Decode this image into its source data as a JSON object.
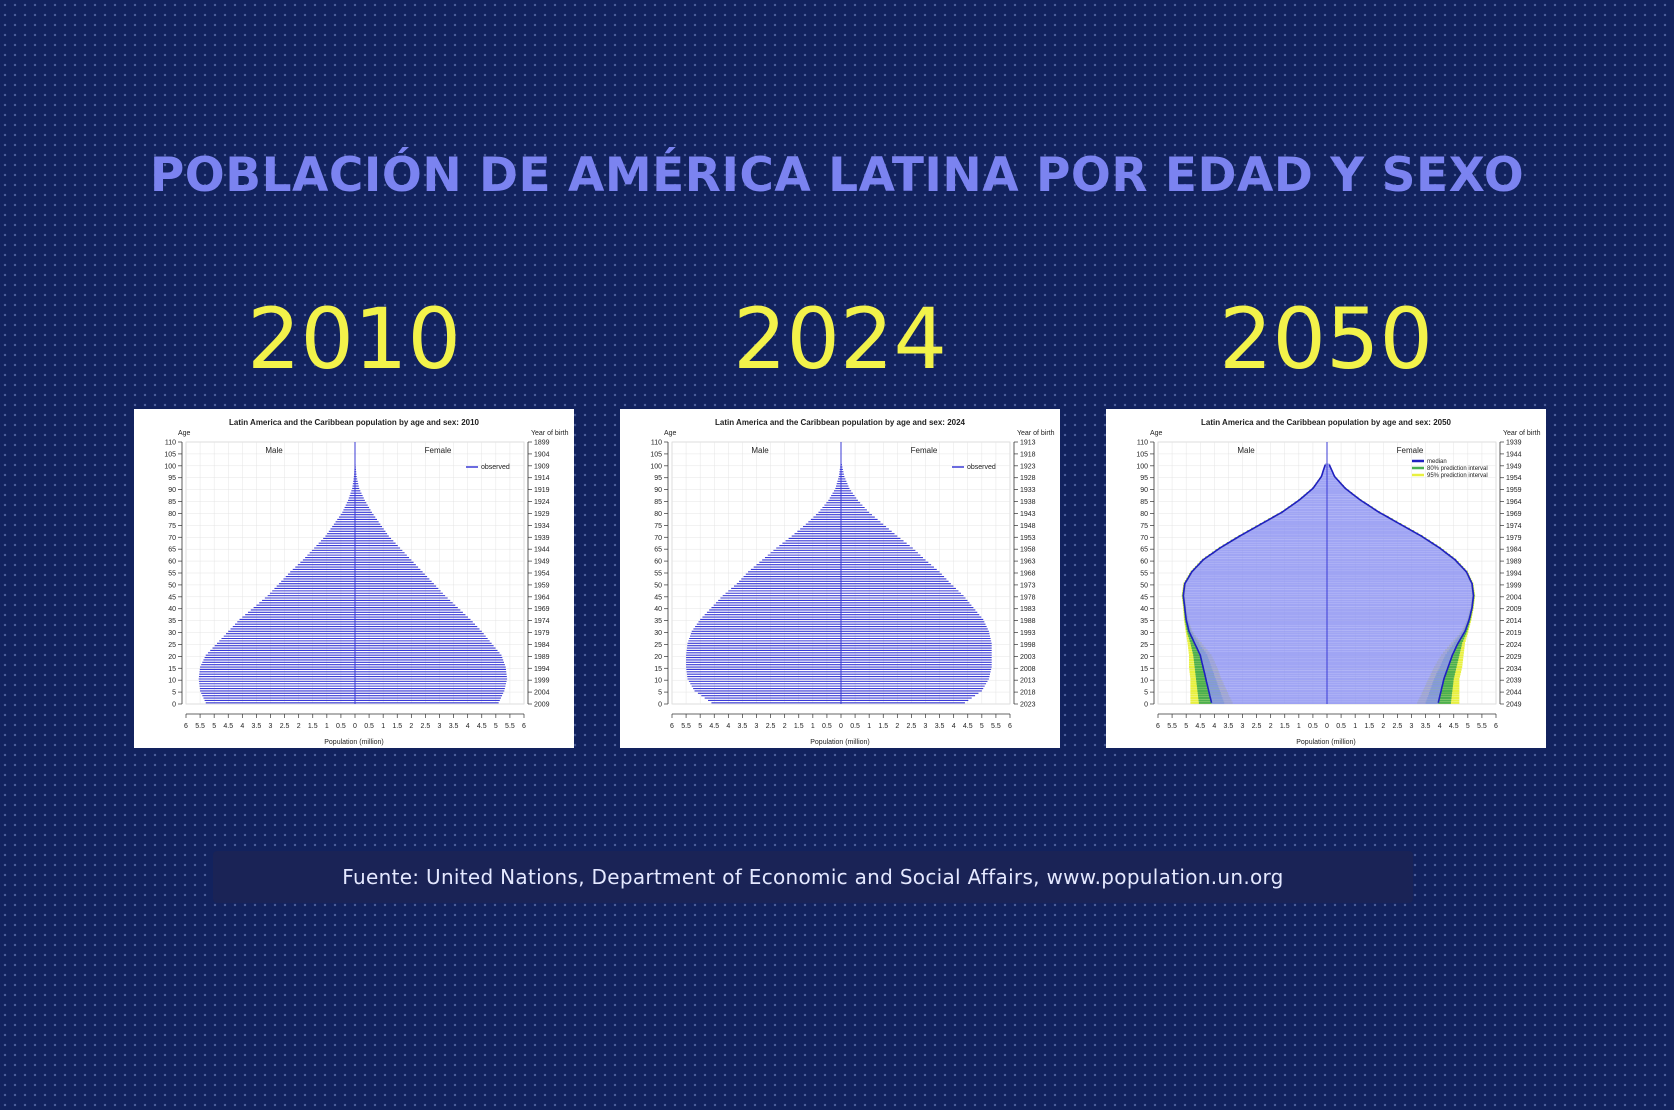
{
  "title": "POBLACIÓN DE AMÉRICA LATINA POR EDAD Y SEXO",
  "years": [
    "2010",
    "2024",
    "2050"
  ],
  "source": "Fuente: United Nations, Department of Economic and Social Affairs, www.population.un.org",
  "colors": {
    "background": "#12225e",
    "title": "#7b83f0",
    "year": "#f2f24a",
    "bars": "#3b3bd6",
    "median": "#2020c0",
    "pi80": "#4caf50",
    "pi95": "#e8f040"
  },
  "chart_data": [
    {
      "type": "bar",
      "title": "Latin America and the Caribbean population by age and sex: 2010",
      "xlabel": "Population (million)",
      "ylabel": "Age",
      "y2label": "Year of birth",
      "left_label": "Male",
      "right_label": "Female",
      "legend": [
        "observed"
      ],
      "legend_position": "top-right",
      "grid": true,
      "xlim": [
        -6,
        6
      ],
      "ylim": [
        0,
        110
      ],
      "x_ticks": [
        "6",
        "5.5",
        "5",
        "4.5",
        "4",
        "3.5",
        "3",
        "2.5",
        "2",
        "1.5",
        "1",
        "0.5",
        "0",
        "0.5",
        "1",
        "1.5",
        "2",
        "2.5",
        "3",
        "3.5",
        "4",
        "4.5",
        "5",
        "5.5",
        "6"
      ],
      "age_ticks": [
        "0",
        "5",
        "10",
        "15",
        "20",
        "25",
        "30",
        "35",
        "40",
        "45",
        "50",
        "55",
        "60",
        "65",
        "70",
        "75",
        "80",
        "85",
        "90",
        "95",
        "100",
        "105",
        "110"
      ],
      "birth_ticks": [
        "2009",
        "2004",
        "1999",
        "1994",
        "1989",
        "1984",
        "1979",
        "1974",
        "1969",
        "1964",
        "1959",
        "1954",
        "1949",
        "1944",
        "1939",
        "1934",
        "1929",
        "1924",
        "1919",
        "1914",
        "1909",
        "1904",
        "1899"
      ],
      "age_points": [
        0,
        5,
        10,
        15,
        20,
        25,
        30,
        35,
        40,
        45,
        50,
        55,
        60,
        65,
        70,
        75,
        80,
        85,
        90,
        95,
        100,
        105,
        110
      ],
      "series": [
        {
          "name": "Male",
          "values": [
            5.3,
            5.5,
            5.55,
            5.5,
            5.3,
            4.9,
            4.5,
            4.1,
            3.6,
            3.1,
            2.7,
            2.3,
            1.85,
            1.45,
            1.05,
            0.75,
            0.45,
            0.25,
            0.1,
            0.04,
            0.01,
            0.005,
            0.002
          ]
        },
        {
          "name": "Female",
          "values": [
            5.1,
            5.3,
            5.4,
            5.35,
            5.2,
            4.85,
            4.5,
            4.1,
            3.65,
            3.2,
            2.8,
            2.4,
            2.0,
            1.6,
            1.2,
            0.9,
            0.6,
            0.35,
            0.15,
            0.06,
            0.02,
            0.006,
            0.002
          ]
        }
      ]
    },
    {
      "type": "bar",
      "title": "Latin America and the Caribbean population by age and sex: 2024",
      "xlabel": "Population (million)",
      "ylabel": "Age",
      "y2label": "Year of birth",
      "left_label": "Male",
      "right_label": "Female",
      "legend": [
        "observed"
      ],
      "legend_position": "top-right",
      "grid": true,
      "xlim": [
        -6,
        6
      ],
      "ylim": [
        0,
        110
      ],
      "x_ticks": [
        "6",
        "5.5",
        "5",
        "4.5",
        "4",
        "3.5",
        "3",
        "2.5",
        "2",
        "1.5",
        "1",
        "0.5",
        "0",
        "0.5",
        "1",
        "1.5",
        "2",
        "2.5",
        "3",
        "3.5",
        "4",
        "4.5",
        "5",
        "5.5",
        "6"
      ],
      "age_ticks": [
        "0",
        "5",
        "10",
        "15",
        "20",
        "25",
        "30",
        "35",
        "40",
        "45",
        "50",
        "55",
        "60",
        "65",
        "70",
        "75",
        "80",
        "85",
        "90",
        "95",
        "100",
        "105",
        "110"
      ],
      "birth_ticks": [
        "2023",
        "2018",
        "2013",
        "2008",
        "2003",
        "1998",
        "1993",
        "1988",
        "1983",
        "1978",
        "1973",
        "1968",
        "1963",
        "1958",
        "1953",
        "1948",
        "1943",
        "1938",
        "1933",
        "1928",
        "1923",
        "1918",
        "1913"
      ],
      "age_points": [
        0,
        5,
        10,
        15,
        20,
        25,
        30,
        35,
        40,
        45,
        50,
        55,
        60,
        65,
        70,
        75,
        80,
        85,
        90,
        95,
        100,
        105,
        110
      ],
      "series": [
        {
          "name": "Male",
          "values": [
            4.6,
            5.2,
            5.45,
            5.5,
            5.5,
            5.45,
            5.3,
            5.0,
            4.6,
            4.2,
            3.7,
            3.3,
            2.8,
            2.3,
            1.75,
            1.25,
            0.8,
            0.45,
            0.2,
            0.08,
            0.02,
            0.006,
            0.002
          ]
        },
        {
          "name": "Female",
          "values": [
            4.4,
            5.0,
            5.25,
            5.35,
            5.35,
            5.35,
            5.25,
            5.05,
            4.7,
            4.35,
            3.9,
            3.5,
            3.0,
            2.55,
            2.0,
            1.5,
            1.0,
            0.6,
            0.3,
            0.12,
            0.035,
            0.008,
            0.002
          ]
        }
      ]
    },
    {
      "type": "bar",
      "title": "Latin America and the Caribbean population by age and sex: 2050",
      "xlabel": "Population (million)",
      "ylabel": "Age",
      "y2label": "Year of birth",
      "left_label": "Male",
      "right_label": "Female",
      "legend": [
        "median",
        "80% prediction interval",
        "95% prediction interval"
      ],
      "legend_position": "top-right",
      "grid": true,
      "xlim": [
        -6,
        6
      ],
      "ylim": [
        0,
        110
      ],
      "x_ticks": [
        "6",
        "5.5",
        "5",
        "4.5",
        "4",
        "3.5",
        "3",
        "2.5",
        "2",
        "1.5",
        "1",
        "0.5",
        "0",
        "0.5",
        "1",
        "1.5",
        "2",
        "2.5",
        "3",
        "3.5",
        "4",
        "4.5",
        "5",
        "5.5",
        "6"
      ],
      "age_ticks": [
        "0",
        "5",
        "10",
        "15",
        "20",
        "25",
        "30",
        "35",
        "40",
        "45",
        "50",
        "55",
        "60",
        "65",
        "70",
        "75",
        "80",
        "85",
        "90",
        "95",
        "100",
        "105",
        "110"
      ],
      "birth_ticks": [
        "2049",
        "2044",
        "2039",
        "2034",
        "2029",
        "2024",
        "2019",
        "2014",
        "2009",
        "2004",
        "1999",
        "1994",
        "1989",
        "1984",
        "1979",
        "1974",
        "1969",
        "1964",
        "1959",
        "1954",
        "1949",
        "1944",
        "1939"
      ],
      "age_points": [
        0,
        5,
        10,
        15,
        20,
        25,
        30,
        35,
        40,
        45,
        50,
        55,
        60,
        65,
        70,
        75,
        80,
        85,
        90,
        95,
        100,
        105,
        110
      ],
      "series": [
        {
          "name": "Male",
          "values": [
            4.1,
            4.2,
            4.3,
            4.4,
            4.5,
            4.7,
            4.9,
            5.0,
            5.05,
            5.1,
            5.05,
            4.8,
            4.4,
            3.8,
            3.1,
            2.35,
            1.6,
            1.0,
            0.5,
            0.2,
            0.06,
            0.015,
            0.003
          ]
        },
        {
          "name": "Female",
          "values": [
            3.95,
            4.05,
            4.15,
            4.3,
            4.45,
            4.65,
            4.9,
            5.05,
            5.15,
            5.2,
            5.15,
            4.95,
            4.55,
            4.0,
            3.35,
            2.6,
            1.85,
            1.2,
            0.65,
            0.27,
            0.08,
            0.02,
            0.004
          ]
        }
      ],
      "interval_80_halfwidth": [
        0.45,
        0.4,
        0.35,
        0.3,
        0.25,
        0.15,
        0.08,
        0.05,
        0.04,
        0.04,
        0.03,
        0.03,
        0.03,
        0.03,
        0.03,
        0.03,
        0.02,
        0.02,
        0.02,
        0.01,
        0.005,
        0.002,
        0.001
      ],
      "interval_95_halfwidth": [
        0.75,
        0.65,
        0.55,
        0.5,
        0.4,
        0.25,
        0.12,
        0.08,
        0.06,
        0.06,
        0.05,
        0.05,
        0.05,
        0.05,
        0.05,
        0.05,
        0.04,
        0.03,
        0.03,
        0.02,
        0.008,
        0.003,
        0.001
      ]
    }
  ]
}
